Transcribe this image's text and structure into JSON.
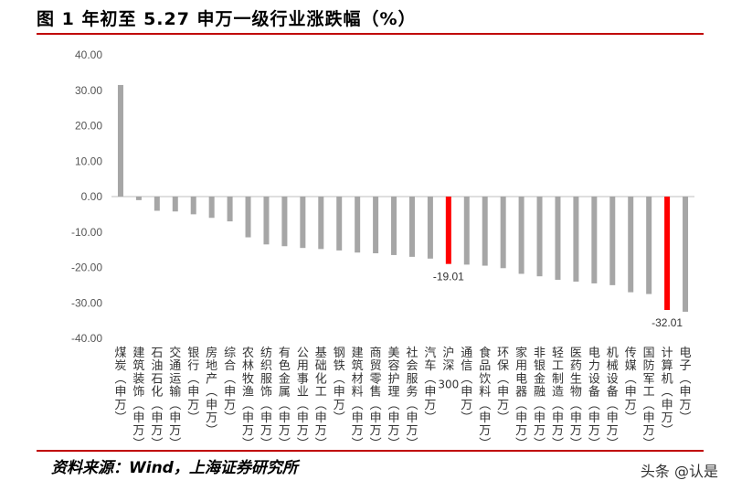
{
  "header": {
    "title": "图 1 年初至 5.27 申万一级行业涨跌幅（%）"
  },
  "footer": {
    "source": "资料来源：Wind，上海证券研究所",
    "watermark": "头条 @认是"
  },
  "colors": {
    "bar": "#a6a6a6",
    "highlight": "#ff0000",
    "axis": "#bfbfbf",
    "rule": "#c00000"
  },
  "chart_data": {
    "type": "bar",
    "title": "年初至 5.27 申万一级行业涨跌幅（%）",
    "ylim": [
      -40,
      40
    ],
    "yticks": [
      "40.00",
      "30.00",
      "20.00",
      "10.00",
      "0.00",
      "-10.00",
      "-20.00",
      "-30.00",
      "-40.00"
    ],
    "grid": false,
    "categories": [
      "煤炭(申万)",
      "建筑装饰(申万)",
      "石油石化(申万)",
      "交通运输(申万)",
      "银行(申万)",
      "房地产(申万)",
      "综合(申万)",
      "农林牧渔(申万)",
      "纺织服饰(申万)",
      "有色金属(申万)",
      "公用事业(申万)",
      "基础化工(申万)",
      "钢铁(申万)",
      "建筑材料(申万)",
      "商贸零售(申万)",
      "美容护理(申万)",
      "社会服务(申万)",
      "汽车(申万)",
      "沪深300",
      "通信(申万)",
      "食品饮料(申万)",
      "环保(申万)",
      "家用电器(申万)",
      "非银金融(申万)",
      "轻工制造(申万)",
      "医药生物(申万)",
      "电力设备(申万)",
      "机械设备(申万)",
      "传媒(申万)",
      "国防军工(申万)",
      "计算机(申万)",
      "电子(申万)"
    ],
    "values": [
      31.5,
      -1.0,
      -4.0,
      -4.2,
      -5.0,
      -6.0,
      -7.0,
      -11.5,
      -13.5,
      -14.0,
      -14.5,
      -14.8,
      -15.2,
      -15.8,
      -16.0,
      -16.5,
      -17.0,
      -17.5,
      -19.01,
      -19.2,
      -19.5,
      -20.2,
      -21.8,
      -22.5,
      -23.5,
      -24.0,
      -24.5,
      -25.0,
      -27.0,
      -27.5,
      -32.01,
      -32.5
    ],
    "highlight_indices": [
      18,
      30
    ],
    "data_labels": [
      {
        "index": 18,
        "text": "-19.01"
      },
      {
        "index": 30,
        "text": "-32.01"
      }
    ]
  }
}
